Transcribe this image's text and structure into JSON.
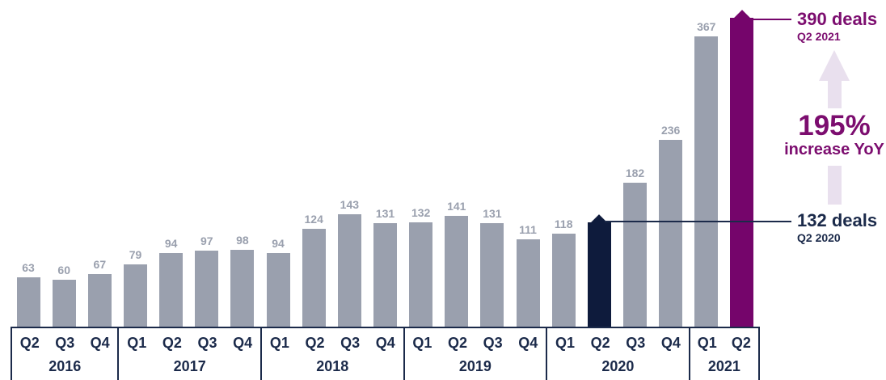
{
  "colors": {
    "bar_gray": "#9aa0ae",
    "bar_navy": "#0e1b3c",
    "bar_purple": "#75056b",
    "value_label_gray": "#9aa0ae",
    "text_navy": "#1b2a4a",
    "text_purple": "#7c0d6f",
    "axis_line": "#1b2a4a",
    "arrow_lavender": "#e9e0ee"
  },
  "chart_data": {
    "type": "bar",
    "title": "",
    "xlabel": "",
    "ylabel": "",
    "max_value": 390,
    "grid": false,
    "legend": false,
    "groups": [
      {
        "year": "2016",
        "quarters": [
          "Q2",
          "Q3",
          "Q4"
        ]
      },
      {
        "year": "2017",
        "quarters": [
          "Q1",
          "Q2",
          "Q3",
          "Q4"
        ]
      },
      {
        "year": "2018",
        "quarters": [
          "Q1",
          "Q2",
          "Q3",
          "Q4"
        ]
      },
      {
        "year": "2019",
        "quarters": [
          "Q1",
          "Q2",
          "Q3",
          "Q4"
        ]
      },
      {
        "year": "2020",
        "quarters": [
          "Q1",
          "Q2",
          "Q3",
          "Q4"
        ]
      },
      {
        "year": "2021",
        "quarters": [
          "Q1",
          "Q2"
        ]
      }
    ],
    "bars": [
      {
        "year": "2016",
        "quarter": "Q2",
        "value": 63,
        "label": "63",
        "style": "gray",
        "show_label": true,
        "marker": false
      },
      {
        "year": "2016",
        "quarter": "Q3",
        "value": 60,
        "label": "60",
        "style": "gray",
        "show_label": true,
        "marker": false
      },
      {
        "year": "2016",
        "quarter": "Q4",
        "value": 67,
        "label": "67",
        "style": "gray",
        "show_label": true,
        "marker": false
      },
      {
        "year": "2017",
        "quarter": "Q1",
        "value": 79,
        "label": "79",
        "style": "gray",
        "show_label": true,
        "marker": false
      },
      {
        "year": "2017",
        "quarter": "Q2",
        "value": 94,
        "label": "94",
        "style": "gray",
        "show_label": true,
        "marker": false
      },
      {
        "year": "2017",
        "quarter": "Q3",
        "value": 97,
        "label": "97",
        "style": "gray",
        "show_label": true,
        "marker": false
      },
      {
        "year": "2017",
        "quarter": "Q4",
        "value": 98,
        "label": "98",
        "style": "gray",
        "show_label": true,
        "marker": false
      },
      {
        "year": "2018",
        "quarter": "Q1",
        "value": 94,
        "label": "94",
        "style": "gray",
        "show_label": true,
        "marker": false
      },
      {
        "year": "2018",
        "quarter": "Q2",
        "value": 124,
        "label": "124",
        "style": "gray",
        "show_label": true,
        "marker": false
      },
      {
        "year": "2018",
        "quarter": "Q3",
        "value": 143,
        "label": "143",
        "style": "gray",
        "show_label": true,
        "marker": false
      },
      {
        "year": "2018",
        "quarter": "Q4",
        "value": 131,
        "label": "131",
        "style": "gray",
        "show_label": true,
        "marker": false
      },
      {
        "year": "2019",
        "quarter": "Q1",
        "value": 132,
        "label": "132",
        "style": "gray",
        "show_label": true,
        "marker": false
      },
      {
        "year": "2019",
        "quarter": "Q2",
        "value": 141,
        "label": "141",
        "style": "gray",
        "show_label": true,
        "marker": false
      },
      {
        "year": "2019",
        "quarter": "Q3",
        "value": 131,
        "label": "131",
        "style": "gray",
        "show_label": true,
        "marker": false
      },
      {
        "year": "2019",
        "quarter": "Q4",
        "value": 111,
        "label": "111",
        "style": "gray",
        "show_label": true,
        "marker": false
      },
      {
        "year": "2020",
        "quarter": "Q1",
        "value": 118,
        "label": "118",
        "style": "gray",
        "show_label": true,
        "marker": false
      },
      {
        "year": "2020",
        "quarter": "Q2",
        "value": 132,
        "label": "",
        "style": "navy",
        "show_label": false,
        "marker": true
      },
      {
        "year": "2020",
        "quarter": "Q3",
        "value": 182,
        "label": "182",
        "style": "gray",
        "show_label": true,
        "marker": false
      },
      {
        "year": "2020",
        "quarter": "Q4",
        "value": 236,
        "label": "236",
        "style": "gray",
        "show_label": true,
        "marker": false
      },
      {
        "year": "2021",
        "quarter": "Q1",
        "value": 367,
        "label": "367",
        "style": "gray",
        "show_label": true,
        "marker": false
      },
      {
        "year": "2021",
        "quarter": "Q2",
        "value": 390,
        "label": "",
        "style": "purple",
        "show_label": false,
        "marker": true
      }
    ]
  },
  "annotations": {
    "deals_2021": {
      "title": "390 deals",
      "subtitle": "Q2 2021"
    },
    "deals_2020": {
      "title": "132 deals",
      "subtitle": "Q2 2020"
    },
    "yoy": {
      "percent": "195%",
      "label": "increase YoY"
    }
  }
}
